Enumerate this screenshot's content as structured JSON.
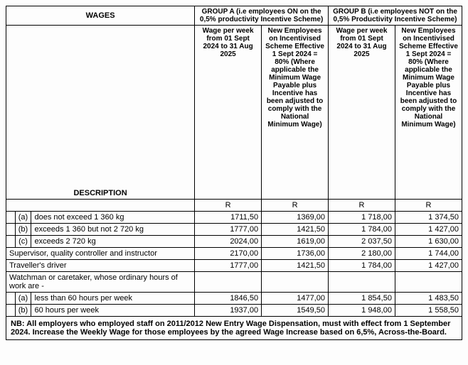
{
  "header": {
    "wages": "WAGES",
    "groupA": "GROUP A (i.e employees ON on the 0,5% productivity Incentive Scheme)",
    "groupB": "GROUP B (i.e employees NOT on the 0,5% Productivity Incentive Scheme)",
    "wagePerWeekA": "Wage per week from 01 Sept 2024 to 31 Aug 2025",
    "newEmpA": "New Employees on Incentivised Scheme Effective 1 Sept 2024 = 80% (Where applicable the Minimum Wage Payable plus Incentive has been adjusted to comply with the National Minimum Wage)",
    "wagePerWeekB": "Wage per week from 01 Sept 2024 to 31 Aug 2025",
    "newEmpB": "New Employees on Incentivised Scheme Effective 1 Sept 2024 = 80% (Where applicable the Minimum Wage Payable plus Incentive has been adjusted to comply with the National Minimum Wage)",
    "description": "DESCRIPTION",
    "currency": "R"
  },
  "rows": [
    {
      "tag": "(a)",
      "desc": "does not exceed 1 360 kg",
      "a1": "1711,50",
      "a2": "1369,00",
      "b1": "1 718,00",
      "b2": "1 374,50"
    },
    {
      "tag": "(b)",
      "desc": "exceeds 1 360 but not 2 720 kg",
      "a1": "1777,00",
      "a2": "1421,50",
      "b1": "1 784,00",
      "b2": "1 427,00"
    },
    {
      "tag": "(c)",
      "desc": "exceeds 2 720 kg",
      "a1": "2024,00",
      "a2": "1619,00",
      "b1": "2 037,50",
      "b2": "1 630,00"
    },
    {
      "tag": "",
      "desc": "Supervisor, quality controller and instructor",
      "a1": "2170,00",
      "a2": "1736,00",
      "b1": "2 180,00",
      "b2": "1 744,00",
      "span": true
    },
    {
      "tag": "",
      "desc": "Traveller's driver",
      "a1": "1777,00",
      "a2": "1421,50",
      "b1": "1 784,00",
      "b2": "1 427,00",
      "span": true
    },
    {
      "tag": "",
      "desc": "Watchman or caretaker, whose ordinary hours of work are -",
      "a1": "",
      "a2": "",
      "b1": "",
      "b2": "",
      "span": true
    },
    {
      "tag": "(a)",
      "desc": "less than 60 hours per week",
      "a1": "1846,50",
      "a2": "1477,00",
      "b1": "1 854,50",
      "b2": "1 483,50"
    },
    {
      "tag": "(b)",
      "desc": "60 hours per week",
      "a1": "1937,00",
      "a2": "1549,50",
      "b1": "1 948,00",
      "b2": "1 558,50"
    }
  ],
  "footnote": "NB: All employers who employed staff on 2011/2012 New Entry Wage Dispensation, must with effect from 1 September 2024. Increase the Weekly Wage for those employees by the agreed Wage Increase based on 6,5%, Across-the-Board."
}
